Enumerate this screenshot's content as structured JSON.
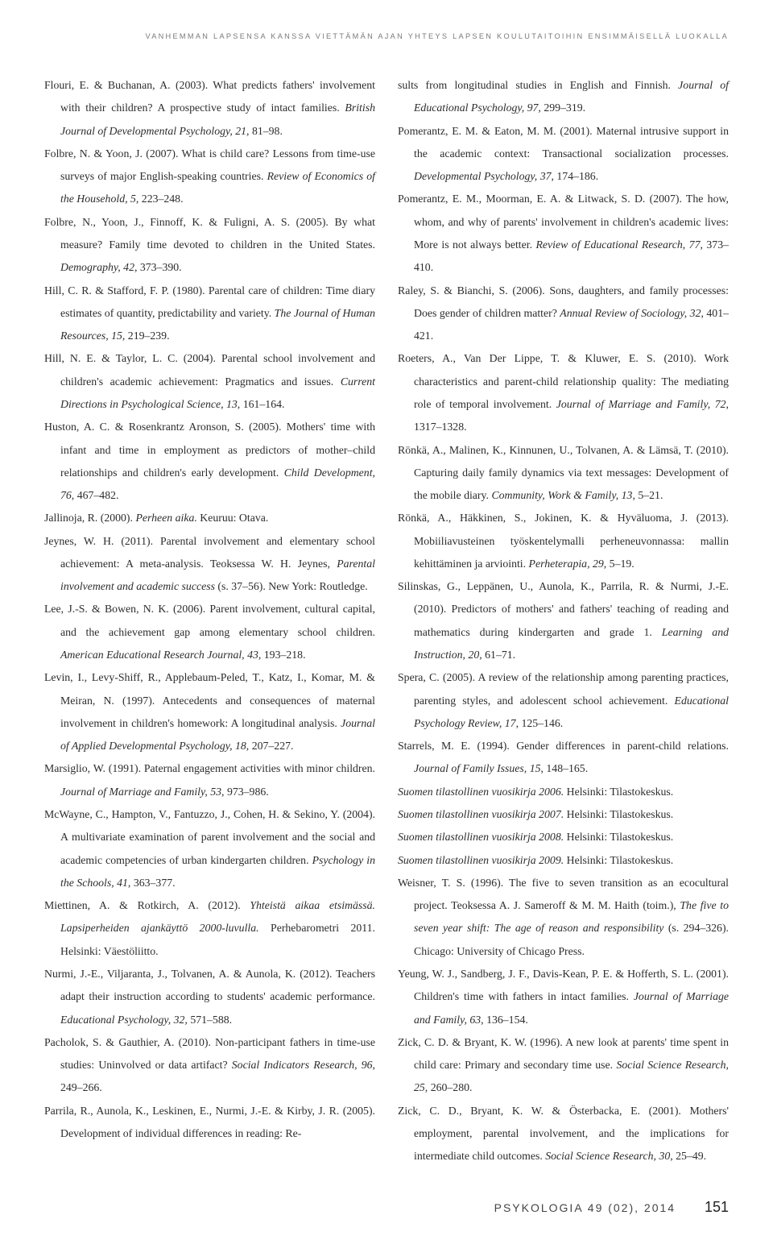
{
  "running_head": "VANHEMMAN LAPSENSA KANSSA VIETTÄMÄN AJAN YHTEYS LAPSEN KOULUTAITOIHIN ENSIMMÄISELLÄ LUOKALLA",
  "left_column": [
    "Flouri, E. & Buchanan, A. (2003). What predicts fathers' involvement with their children? A prospective study of intact families. <i>British Journal of Developmental Psychology, 21</i>, 81–98.",
    "Folbre, N. & Yoon, J. (2007). What is child care? Lessons from time-use surveys of major English-speaking countries. <i>Review of Economics of the Household, 5</i>, 223–248.",
    "Folbre, N., Yoon, J., Finnoff, K. & Fuligni, A. S. (2005). By what measure? Family time devoted to children in the United States. <i>Demography, 42</i>, 373–390.",
    "Hill, C. R. & Stafford, F. P. (1980). Parental care of children: Time diary estimates of quantity, predictability and variety. <i>The Journal of Human Resources, 15</i>, 219–239.",
    "Hill, N. E. & Taylor, L. C. (2004). Parental school involvement and children's academic achievement: Pragmatics and issues. <i>Current Directions in Psychological Science, 13</i>, 161–164.",
    "Huston, A. C. & Rosenkrantz Aronson, S. (2005). Mothers' time with infant and time in employment as predictors of mother–child relationships and children's early development. <i>Child Development, 76</i>, 467–482.",
    "Jallinoja, R. (2000). <i>Perheen aika.</i> Keuruu: Otava.",
    "Jeynes, W. H. (2011). Parental involvement and elementary school achievement: A meta-analysis. Teoksessa W. H. Jeynes, <i>Parental involvement and academic success</i> (s. 37–56). New York: Routledge.",
    "Lee, J.-S. & Bowen, N. K. (2006). Parent involvement, cultural capital, and the achievement gap among elementary school children. <i>American Educational Research Journal, 43</i>, 193–218.",
    "Levin, I., Levy-Shiff, R., Applebaum-Peled, T., Katz, I., Komar, M. & Meiran, N. (1997). Antecedents and consequences of maternal involvement in children's homework: A longitudinal analysis. <i>Journal of Applied Developmental Psychology, 18</i>, 207–227.",
    "Marsiglio, W. (1991). Paternal engagement activities with minor children. <i>Journal of Marriage and Family, 53</i>, 973–986.",
    "McWayne, C., Hampton, V., Fantuzzo, J., Cohen, H. & Sekino, Y. (2004). A multivariate examination of parent involvement and the social and academic competencies of urban kindergarten children. <i>Psychology in the Schools, 41</i>, 363–377.",
    "Miettinen, A. & Rotkirch, A. (2012). <i>Yhteistä aikaa etsimässä. Lapsiperheiden ajankäyttö 2000-luvulla.</i> Perhebarometri 2011. Helsinki: Väestöliitto.",
    "Nurmi, J.-E., Viljaranta, J., Tolvanen, A. & Aunola, K. (2012). Teachers adapt their instruction according to students' academic performance. <i>Educational Psychology, 32,</i> 571–588.",
    "Pacholok, S. & Gauthier, A. (2010). Non-participant fathers in time-use studies: Uninvolved or data artifact? <i>Social Indicators Research, 96</i>, 249–266.",
    "Parrila, R., Aunola, K., Leskinen, E., Nurmi, J.-E. & Kirby, J. R. (2005). Development of individual differences in reading: Re-"
  ],
  "right_column": [
    "sults from longitudinal studies in English and Finnish. <i>Journal of Educational Psychology, 97,</i> 299–319.",
    "Pomerantz, E. M. & Eaton, M. M. (2001). Maternal intrusive support in the academic context: Transactional socialization processes. <i>Developmental Psychology, 37</i>, 174–186.",
    "Pomerantz, E. M., Moorman, E. A. & Litwack, S. D. (2007). The how, whom, and why of parents' involvement in children's academic lives: More is not always better. <i>Review of Educational Research, 77</i>, 373–410.",
    "Raley, S. & Bianchi, S. (2006). Sons, daughters, and family processes: Does gender of children matter? <i>Annual Review of Sociology, 32</i>, 401–421.",
    "Roeters, A., Van Der Lippe, T. & Kluwer, E. S. (2010). Work characteristics and parent-child relationship quality: The mediating role of temporal involvement. <i>Journal of Marriage and Family, 72</i>, 1317–1328.",
    "Rönkä, A., Malinen, K., Kinnunen, U., Tolvanen, A. & Lämsä, T. (2010). Capturing daily family dynamics via text messages: Development of the mobile diary. <i>Community, Work & Family, 13</i>, 5–21.",
    "Rönkä, A., Häkkinen, S., Jokinen, K. & Hyväluoma, J. (2013). Mobiiliavusteinen työskentelymalli perheneuvonnassa: mallin kehittäminen ja arviointi. <i>Perheterapia, 29</i>, 5–19.",
    "Silinskas, G., Leppänen, U., Aunola, K., Parrila, R. & Nurmi, J.-E. (2010). Predictors of mothers' and fathers' teaching of reading and mathematics during kindergarten and grade 1. <i>Learning and Instruction, 20</i>, 61–71.",
    "Spera, C. (2005). A review of the relationship among parenting practices, parenting styles, and adolescent school achievement. <i>Educational Psychology Review, 17</i>, 125–146.",
    "Starrels, M. E. (1994). Gender differences in parent-child relations. <i>Journal of Family Issues, 15</i>, 148–165.",
    "<i>Suomen tilastollinen vuosikirja 2006.</i> Helsinki: Tilastokeskus.",
    "<i>Suomen tilastollinen vuosikirja 2007.</i> Helsinki: Tilastokeskus.",
    "<i>Suomen tilastollinen vuosikirja 2008.</i> Helsinki: Tilastokeskus.",
    "<i>Suomen tilastollinen vuosikirja 2009.</i> Helsinki: Tilastokeskus.",
    "Weisner, T. S. (1996). The five to seven transition as an ecocultural project. Teoksessa A. J. Sameroff & M. M. Haith (toim.), <i>The five to seven year shift: The age of reason and responsibility</i> (s. 294–326). Chicago: University of Chicago Press.",
    "Yeung, W. J., Sandberg, J. F., Davis-Kean, P. E. & Hofferth, S. L. (2001). Children's time with fathers in intact families. <i>Journal of Marriage and Family, 63</i>, 136–154.",
    "Zick, C. D. & Bryant, K. W. (1996). A new look at parents' time spent in child care: Primary and secondary time use. <i>Social Science Research, 25</i>, 260–280.",
    "Zick, C. D., Bryant, K. W. & Österbacka, E. (2001). Mothers' employment, parental involvement, and the implications for intermediate child outcomes. <i>Social Science Research, 30</i>, 25–49."
  ],
  "footer": {
    "journal": "PSYKOLOGIA 49 (02), 2014",
    "page": "151"
  }
}
